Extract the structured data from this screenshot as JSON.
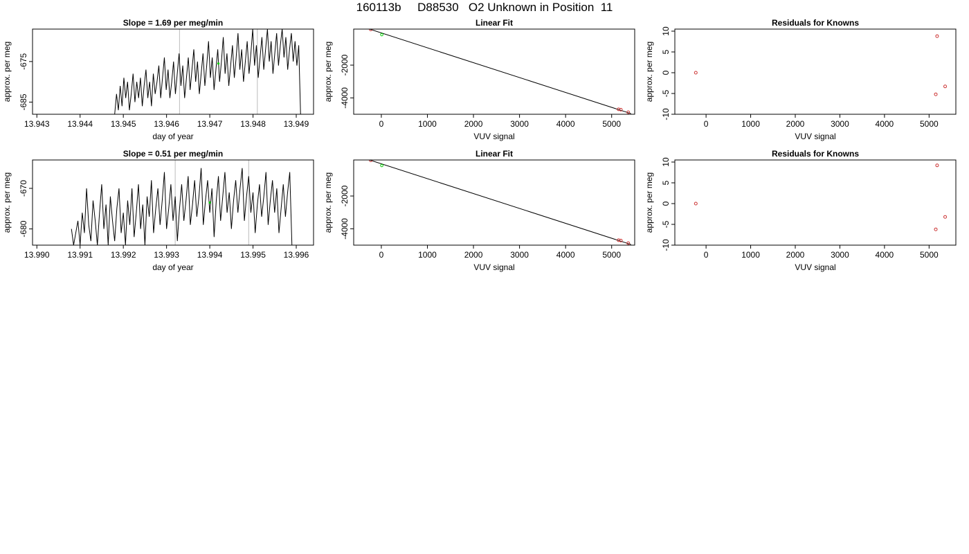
{
  "page_title": "160113b     D88530   O2 Unknown in Position  11",
  "colors": {
    "trace": "#000000",
    "marker_green": "#00cc00",
    "marker_red": "#cc3333",
    "vline": "#bbbbbb"
  },
  "chart_data": [
    {
      "id": "slope-row1",
      "type": "line",
      "title": "Slope =  1.69  per meg/min",
      "xlabel": "day of year",
      "ylabel": "approx. per meg",
      "xlim": [
        13.9429,
        13.9494
      ],
      "ylim": [
        -688,
        -667
      ],
      "xticks": [
        "13.943",
        "13.944",
        "13.945",
        "13.946",
        "13.947",
        "13.948",
        "13.949"
      ],
      "xtick_values": [
        13.943,
        13.944,
        13.945,
        13.946,
        13.947,
        13.948,
        13.949
      ],
      "yticks": [
        "-685",
        "-675"
      ],
      "ytick_values": [
        -685,
        -675
      ],
      "vlines": [
        13.9463,
        13.9481
      ],
      "green_point": [
        13.9472,
        -675.5
      ],
      "series": [
        {
          "x_start": 13.9448,
          "x_end": 13.9491,
          "values": [
            -688,
            -683,
            -687,
            -681,
            -686,
            -679,
            -684,
            -680,
            -687,
            -683,
            -678,
            -685,
            -680,
            -684,
            -679,
            -686,
            -681,
            -677,
            -684,
            -680,
            -686,
            -678,
            -683,
            -680,
            -676,
            -684,
            -679,
            -674,
            -682,
            -677,
            -684,
            -680,
            -675,
            -683,
            -678,
            -673,
            -681,
            -676,
            -684,
            -679,
            -674,
            -682,
            -677,
            -672,
            -680,
            -675,
            -683,
            -678,
            -673,
            -681,
            -676,
            -670,
            -679,
            -674,
            -682,
            -677,
            -672,
            -680,
            -675,
            -669,
            -678,
            -673,
            -681,
            -676,
            -671,
            -679,
            -674,
            -668,
            -677,
            -672,
            -680,
            -675,
            -670,
            -678,
            -673,
            -667,
            -676,
            -671,
            -679,
            -674,
            -669,
            -677,
            -672,
            -667,
            -675,
            -670,
            -678,
            -673,
            -668,
            -676,
            -671,
            -667,
            -674,
            -669,
            -677,
            -672,
            -668,
            -675,
            -670,
            -676,
            -671,
            -688
          ]
        }
      ]
    },
    {
      "id": "linfit-row1",
      "type": "scatter",
      "title": "Linear Fit",
      "xlabel": "VUV signal",
      "ylabel": "approx. per meg",
      "xlim": [
        -600,
        5500
      ],
      "ylim": [
        -5000,
        200
      ],
      "xticks": [
        "0",
        "1000",
        "2000",
        "3000",
        "4000",
        "5000"
      ],
      "xtick_values": [
        0,
        1000,
        2000,
        3000,
        4000,
        5000
      ],
      "yticks": [
        "-4000",
        "-2000"
      ],
      "ytick_values": [
        -4000,
        -2000
      ],
      "fit_line": [
        [
          -520,
          440
        ],
        [
          5420,
          -4960
        ]
      ],
      "points_known": [
        [
          -230,
          180
        ],
        [
          5150,
          -4700
        ],
        [
          5200,
          -4720
        ],
        [
          5360,
          -4880
        ]
      ],
      "points_unknown": [
        [
          10,
          -140
        ]
      ]
    },
    {
      "id": "resid-row1",
      "type": "scatter",
      "title": "Residuals for Knowns",
      "xlabel": "VUV signal",
      "ylabel": "approx. per meg",
      "xlim": [
        -700,
        5600
      ],
      "ylim": [
        -10,
        10.5
      ],
      "xticks": [
        "0",
        "1000",
        "2000",
        "3000",
        "4000",
        "5000"
      ],
      "xtick_values": [
        0,
        1000,
        2000,
        3000,
        4000,
        5000
      ],
      "yticks": [
        "-10",
        "-5",
        "0",
        "5",
        "10"
      ],
      "ytick_values": [
        -10,
        -5,
        0,
        5,
        10
      ],
      "points_known": [
        [
          -230,
          0
        ],
        [
          5180,
          8.8
        ],
        [
          5150,
          -5.2
        ],
        [
          5360,
          -3.3
        ]
      ]
    },
    {
      "id": "slope-row2",
      "type": "line",
      "title": "Slope =  0.51  per meg/min",
      "xlabel": "day of year",
      "ylabel": "approx. per meg",
      "xlim": [
        13.9899,
        13.9964
      ],
      "ylim": [
        -684,
        -663
      ],
      "xticks": [
        "13.990",
        "13.991",
        "13.992",
        "13.993",
        "13.994",
        "13.995",
        "13.996"
      ],
      "xtick_values": [
        13.99,
        13.991,
        13.992,
        13.993,
        13.994,
        13.995,
        13.996
      ],
      "yticks": [
        "-680",
        "-670"
      ],
      "ytick_values": [
        -680,
        -670
      ],
      "vlines": [
        13.9932,
        13.9949
      ],
      "green_point": [
        13.994,
        -673.5
      ],
      "series": [
        {
          "x_start": 13.9908,
          "x_end": 13.9959,
          "values": [
            -680,
            -684,
            -681,
            -678,
            -684,
            -676,
            -681,
            -670,
            -679,
            -683,
            -673,
            -678,
            -684,
            -676,
            -669,
            -680,
            -674,
            -684,
            -672,
            -678,
            -683,
            -675,
            -670,
            -681,
            -676,
            -684,
            -673,
            -679,
            -670,
            -682,
            -676,
            -669,
            -680,
            -674,
            -684,
            -672,
            -677,
            -668,
            -681,
            -675,
            -670,
            -679,
            -673,
            -666,
            -680,
            -675,
            -669,
            -678,
            -672,
            -683,
            -675,
            -669,
            -678,
            -673,
            -667,
            -679,
            -674,
            -668,
            -677,
            -672,
            -665,
            -679,
            -673,
            -668,
            -676,
            -670,
            -682,
            -673,
            -667,
            -678,
            -672,
            -666,
            -676,
            -671,
            -680,
            -673,
            -668,
            -676,
            -670,
            -665,
            -678,
            -672,
            -667,
            -676,
            -671,
            -681,
            -674,
            -669,
            -677,
            -672,
            -666,
            -679,
            -673,
            -668,
            -676,
            -670,
            -681,
            -675,
            -669,
            -677,
            -671,
            -666,
            -684
          ]
        }
      ]
    },
    {
      "id": "linfit-row2",
      "type": "scatter",
      "title": "Linear Fit",
      "xlabel": "VUV signal",
      "ylabel": "approx. per meg",
      "xlim": [
        -600,
        5500
      ],
      "ylim": [
        -5000,
        200
      ],
      "xticks": [
        "0",
        "1000",
        "2000",
        "3000",
        "4000",
        "5000"
      ],
      "xtick_values": [
        0,
        1000,
        2000,
        3000,
        4000,
        5000
      ],
      "yticks": [
        "-4000",
        "-2000"
      ],
      "ytick_values": [
        -4000,
        -2000
      ],
      "fit_line": [
        [
          -520,
          440
        ],
        [
          5420,
          -4960
        ]
      ],
      "points_known": [
        [
          -230,
          180
        ],
        [
          5150,
          -4700
        ],
        [
          5200,
          -4720
        ],
        [
          5360,
          -4880
        ]
      ],
      "points_unknown": [
        [
          10,
          -140
        ]
      ]
    },
    {
      "id": "resid-row2",
      "type": "scatter",
      "title": "Residuals for Knowns",
      "xlabel": "VUV signal",
      "ylabel": "approx. per meg",
      "xlim": [
        -700,
        5600
      ],
      "ylim": [
        -10,
        10.5
      ],
      "xticks": [
        "0",
        "1000",
        "2000",
        "3000",
        "4000",
        "5000"
      ],
      "xtick_values": [
        0,
        1000,
        2000,
        3000,
        4000,
        5000
      ],
      "yticks": [
        "-10",
        "-5",
        "0",
        "5",
        "10"
      ],
      "ytick_values": [
        -10,
        -5,
        0,
        5,
        10
      ],
      "points_known": [
        [
          -230,
          0
        ],
        [
          5180,
          9.2
        ],
        [
          5150,
          -6.2
        ],
        [
          5360,
          -3.2
        ]
      ]
    }
  ]
}
